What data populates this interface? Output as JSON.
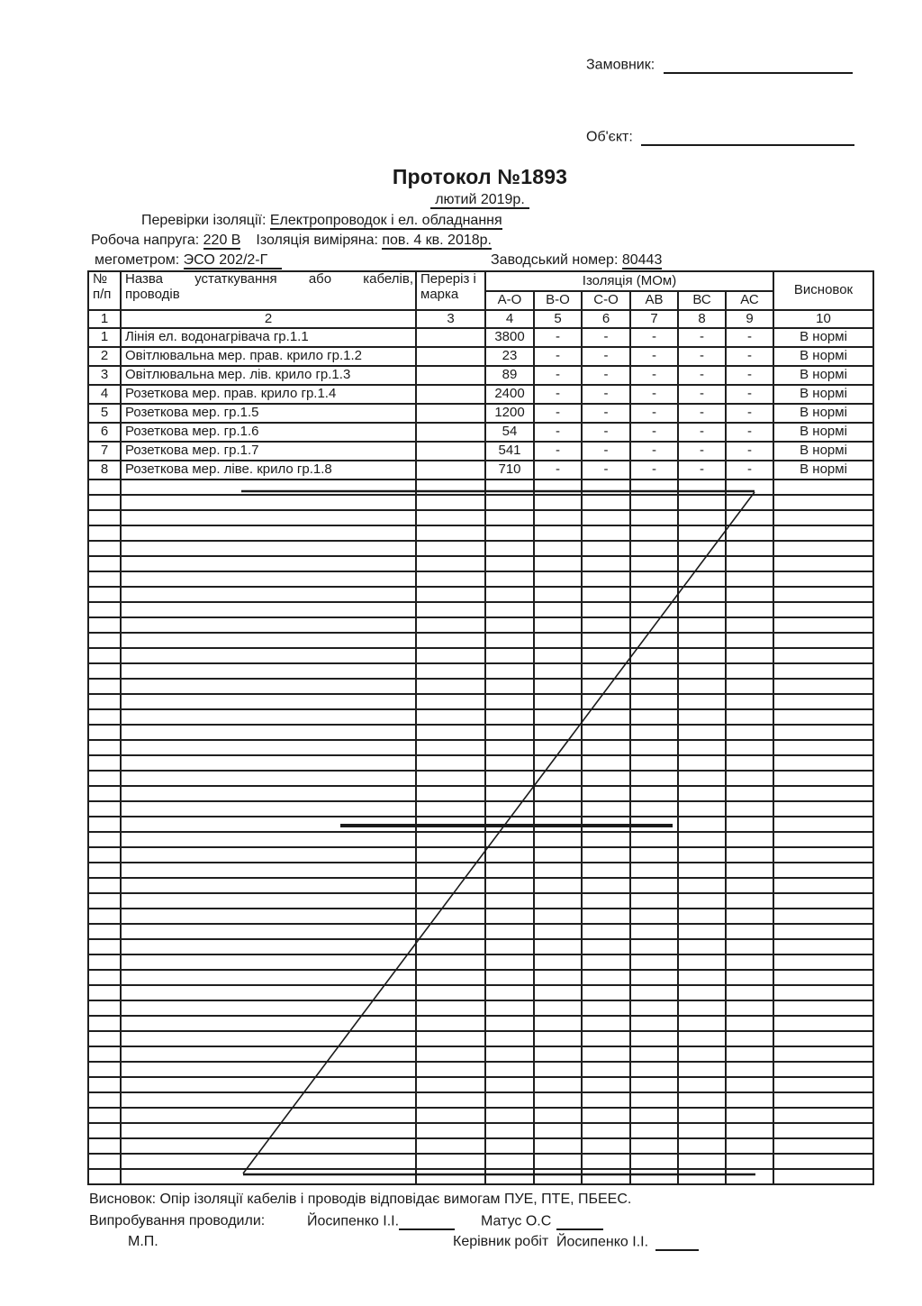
{
  "colors": {
    "ink": "#1a1a1a",
    "paper": "#ffffff"
  },
  "form": {
    "customer_label": "Замовник:",
    "object_label": "Об'єкт:",
    "title": "Протокол №1893",
    "date_line": "лютий 2019р.",
    "inspection_label": "Перевірки ізоляції:",
    "inspection_value": "Електропроводок і ел. обладнання",
    "voltage_label": "Робоча напруга:",
    "voltage_value": "220 В",
    "measured_label": "Ізоляція виміряна:",
    "measured_value": "пов. 4 кв. 2018р.",
    "megohmmeter_label": "мегометром:",
    "megohmmeter_value": "ЭСО 202/2-Г",
    "factory_number_label": "Заводський номер:",
    "factory_number_value": "80443"
  },
  "table": {
    "headers": {
      "num_line1": "№",
      "num_line2": "п/п",
      "name_line1": "Назва устаткування або кабелів,",
      "name_line2": "проводів",
      "section_line1": "Переріз і",
      "section_line2": "марка",
      "insulation_group": "Ізоляція (МОм)",
      "insulation_cols": [
        "А-О",
        "В-О",
        "С-О",
        "АВ",
        "ВС",
        "АС"
      ],
      "conclusion": "Висновок"
    },
    "column_numbers": [
      "1",
      "2",
      "3",
      "4",
      "5",
      "6",
      "7",
      "8",
      "9",
      "10"
    ],
    "rows": [
      {
        "num": "1",
        "name": "Лінія ел. водонагрівача гр.1.1",
        "section": "",
        "a_o": "3800",
        "b_o": "-",
        "c_o": "-",
        "ab": "-",
        "bc": "-",
        "ac": "-",
        "conclusion": "В нормі"
      },
      {
        "num": "2",
        "name": "Овітлювальна мер. прав. крило гр.1.2",
        "section": "",
        "a_o": "23",
        "b_o": "-",
        "c_o": "-",
        "ab": "-",
        "bc": "-",
        "ac": "-",
        "conclusion": "В нормі"
      },
      {
        "num": "3",
        "name": "Овітлювальна мер. лів. крило гр.1.3",
        "section": "",
        "a_o": "89",
        "b_o": "-",
        "c_o": "-",
        "ab": "-",
        "bc": "-",
        "ac": "-",
        "conclusion": "В нормі"
      },
      {
        "num": "4",
        "name": "Розеткова мер. прав. крило гр.1.4",
        "section": "",
        "a_o": "2400",
        "b_o": "-",
        "c_o": "-",
        "ab": "-",
        "bc": "-",
        "ac": "-",
        "conclusion": "В нормі"
      },
      {
        "num": "5",
        "name": "Розеткова мер. гр.1.5",
        "section": "",
        "a_o": "1200",
        "b_o": "-",
        "c_o": "-",
        "ab": "-",
        "bc": "-",
        "ac": "-",
        "conclusion": "В нормі"
      },
      {
        "num": "6",
        "name": "Розеткова мер. гр.1.6",
        "section": "",
        "a_o": "54",
        "b_o": "-",
        "c_o": "-",
        "ab": "-",
        "bc": "-",
        "ac": "-",
        "conclusion": "В нормі"
      },
      {
        "num": "7",
        "name": "Розеткова мер. гр.1.7",
        "section": "",
        "a_o": "541",
        "b_o": "-",
        "c_o": "-",
        "ab": "-",
        "bc": "-",
        "ac": "-",
        "conclusion": "В нормі"
      },
      {
        "num": "8",
        "name": "Розеткова мер. ліве. крило гр.1.8",
        "section": "",
        "a_o": "710",
        "b_o": "-",
        "c_o": "-",
        "ab": "-",
        "bc": "-",
        "ac": "-",
        "conclusion": "В нормі"
      }
    ],
    "empty_row_count": 46
  },
  "footer": {
    "conclusion_line": "Висновок: Опір ізоляції кабелів і проводів відповідає вимогам ПУЕ, ПТЕ, ПБЕЕС.",
    "testers_label": "Випробування проводили:",
    "tester1": "Йосипенко І.І.",
    "tester2": "Матус О.С",
    "stamp_label": "М.П.",
    "supervisor_label": "Керівник робіт",
    "supervisor_name": "Йосипенко І.І."
  }
}
